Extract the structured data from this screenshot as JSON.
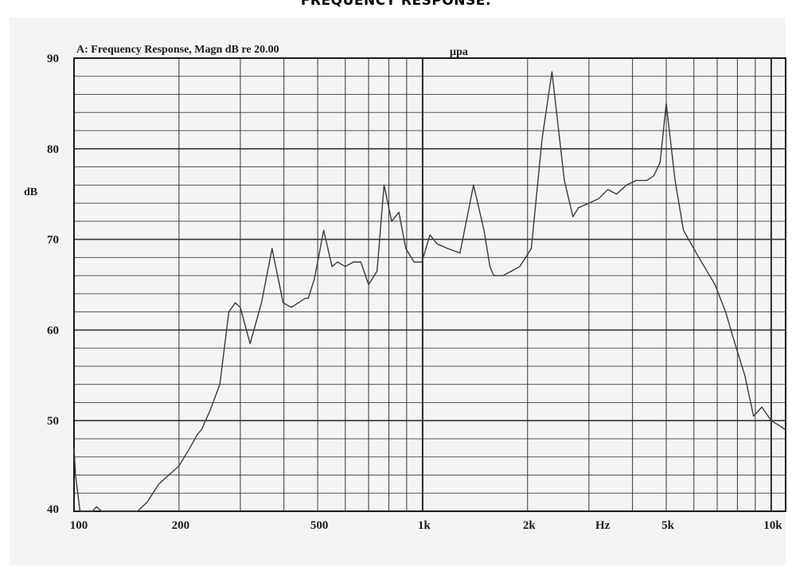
{
  "page": {
    "title": "FREQUENCY RESPONSE:"
  },
  "chart_data": {
    "type": "line",
    "title": "A: Frequency Response, Magn dB re 20.00",
    "title_unit": "µpa",
    "xlabel": "Hz",
    "ylabel": "dB",
    "x_scale": "log",
    "xlim": [
      100,
      11000
    ],
    "ylim": [
      40,
      90
    ],
    "grid": true,
    "legend": "none",
    "line_color": "#3a3a3a",
    "grid_color": "#2a2a2a",
    "x_ticks": [
      {
        "value": 100,
        "label": "100"
      },
      {
        "value": 200,
        "label": "200"
      },
      {
        "value": 500,
        "label": "500"
      },
      {
        "value": 1000,
        "label": "1k"
      },
      {
        "value": 2000,
        "label": "2k"
      },
      {
        "value": 5000,
        "label": "5k"
      },
      {
        "value": 10000,
        "label": "10k"
      }
    ],
    "y_ticks": [
      {
        "value": 40,
        "label": "40"
      },
      {
        "value": 50,
        "label": "50"
      },
      {
        "value": 60,
        "label": "60"
      },
      {
        "value": 70,
        "label": "70"
      },
      {
        "value": 80,
        "label": "80"
      },
      {
        "value": 90,
        "label": "90"
      }
    ],
    "series": [
      {
        "x": [
          100,
          101,
          104,
          107,
          110,
          113,
          116,
          120,
          131,
          137,
          145,
          152,
          162,
          175,
          200,
          215,
          226,
          232,
          245,
          262,
          278,
          290,
          300,
          320,
          345,
          370,
          398,
          420,
          440,
          460,
          470,
          488,
          500,
          520,
          550,
          570,
          600,
          633,
          665,
          700,
          740,
          775,
          815,
          855,
          895,
          945,
          995,
          1050,
          1100,
          1180,
          1280,
          1400,
          1500,
          1560,
          1600,
          1700,
          1800,
          1900,
          2050,
          2200,
          2350,
          2550,
          2700,
          2800,
          3000,
          3200,
          3400,
          3600,
          3850,
          4100,
          4400,
          4600,
          4800,
          5000,
          5300,
          5600,
          6200,
          6900,
          7400,
          7800,
          8400,
          8900,
          9400,
          10000,
          10500,
          11000
        ],
        "y": [
          47,
          44,
          40,
          39,
          38.5,
          39,
          40.5,
          38.5,
          39.5,
          37,
          37.5,
          38.2,
          41,
          43,
          45,
          47,
          48.5,
          49,
          51,
          54,
          62,
          63,
          62.5,
          58.5,
          63,
          69,
          63,
          62.5,
          63,
          63.5,
          63.5,
          65.5,
          67.5,
          71,
          67,
          67.5,
          67,
          67.5,
          67.5,
          65,
          66.5,
          76,
          72,
          73,
          69,
          67.5,
          67.5,
          70.5,
          69.5,
          69,
          68.5,
          76,
          71,
          67,
          66,
          66,
          66.5,
          67,
          69,
          81,
          88.5,
          76.5,
          72.5,
          73.5,
          74,
          74.5,
          75.5,
          75,
          76,
          76.5,
          76.5,
          77,
          78.5,
          85,
          76.5,
          71,
          68,
          65,
          62,
          59,
          55,
          50.5,
          51.5,
          50,
          49.5,
          49
        ]
      }
    ]
  }
}
